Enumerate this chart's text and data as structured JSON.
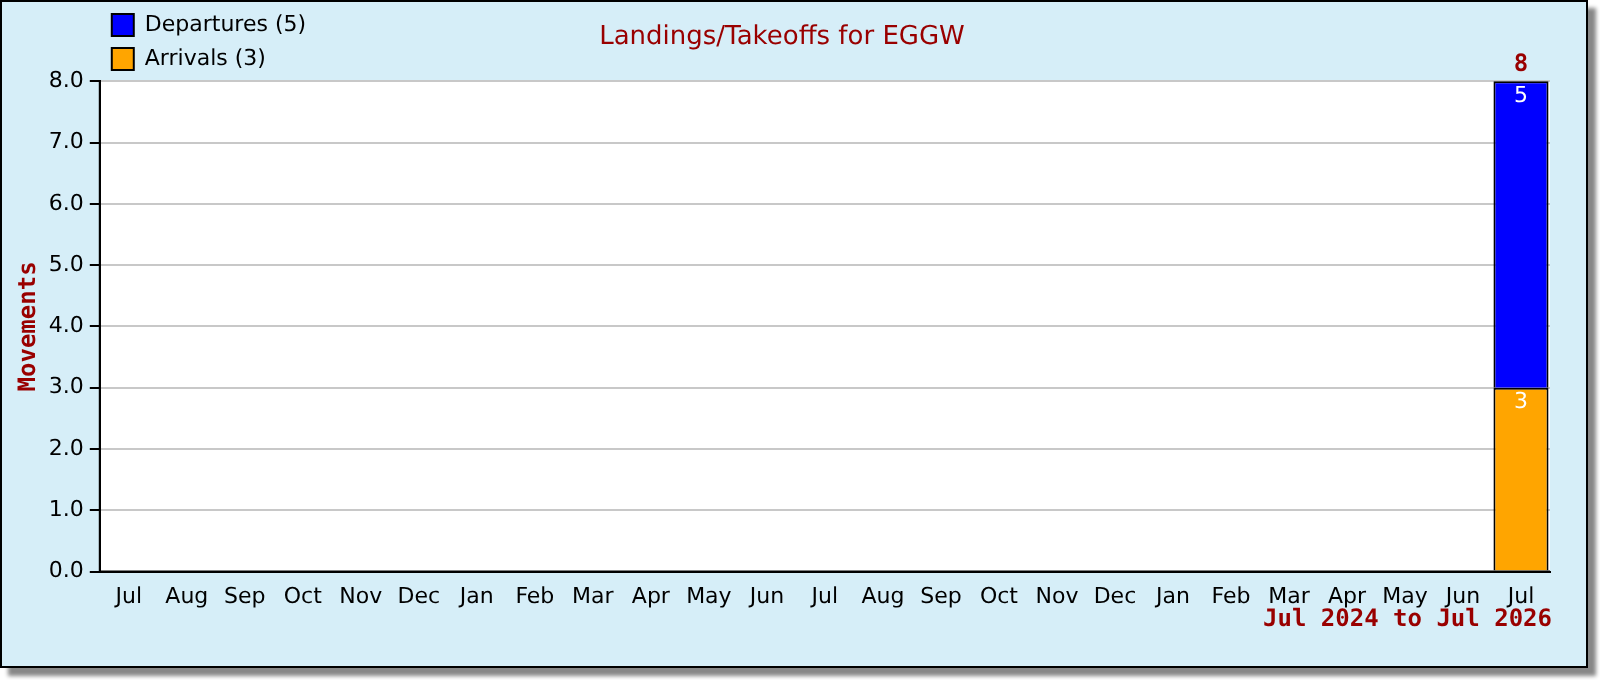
{
  "chart_data": {
    "type": "bar",
    "title": "Landings/Takeoffs for EGGW",
    "xlabel": "Jul 2024 to Jul 2026",
    "ylabel": "Movements",
    "categories": [
      "Jul",
      "Aug",
      "Sep",
      "Oct",
      "Nov",
      "Dec",
      "Jan",
      "Feb",
      "Mar",
      "Apr",
      "May",
      "Jun",
      "Jul",
      "Aug",
      "Sep",
      "Oct",
      "Nov",
      "Dec",
      "Jan",
      "Feb",
      "Mar",
      "Apr",
      "May",
      "Jun",
      "Jul"
    ],
    "stacked": true,
    "series": [
      {
        "name": "Arrivals (3)",
        "color": "#ffa500",
        "values": [
          0,
          0,
          0,
          0,
          0,
          0,
          0,
          0,
          0,
          0,
          0,
          0,
          0,
          0,
          0,
          0,
          0,
          0,
          0,
          0,
          0,
          0,
          0,
          0,
          3
        ],
        "value_labels": [
          null,
          null,
          null,
          null,
          null,
          null,
          null,
          null,
          null,
          null,
          null,
          null,
          null,
          null,
          null,
          null,
          null,
          null,
          null,
          null,
          null,
          null,
          null,
          null,
          "3"
        ]
      },
      {
        "name": "Departures (5)",
        "color": "#0000ff",
        "values": [
          0,
          0,
          0,
          0,
          0,
          0,
          0,
          0,
          0,
          0,
          0,
          0,
          0,
          0,
          0,
          0,
          0,
          0,
          0,
          0,
          0,
          0,
          0,
          0,
          5
        ],
        "value_labels": [
          null,
          null,
          null,
          null,
          null,
          null,
          null,
          null,
          null,
          null,
          null,
          null,
          null,
          null,
          null,
          null,
          null,
          null,
          null,
          null,
          null,
          null,
          null,
          null,
          "5"
        ]
      }
    ],
    "totals": [
      null,
      null,
      null,
      null,
      null,
      null,
      null,
      null,
      null,
      null,
      null,
      null,
      null,
      null,
      null,
      null,
      null,
      null,
      null,
      null,
      null,
      null,
      null,
      null,
      "8"
    ],
    "ylim": [
      0,
      8
    ],
    "yticks": [
      {
        "value": 0,
        "label": "0.0"
      },
      {
        "value": 1,
        "label": "1.0"
      },
      {
        "value": 2,
        "label": "2.0"
      },
      {
        "value": 3,
        "label": "3.0"
      },
      {
        "value": 4,
        "label": "4.0"
      },
      {
        "value": 5,
        "label": "5.0"
      },
      {
        "value": 6,
        "label": "6.0"
      },
      {
        "value": 7,
        "label": "7.0"
      },
      {
        "value": 8,
        "label": "8.0"
      }
    ],
    "grid": "y",
    "legend": "top left"
  }
}
